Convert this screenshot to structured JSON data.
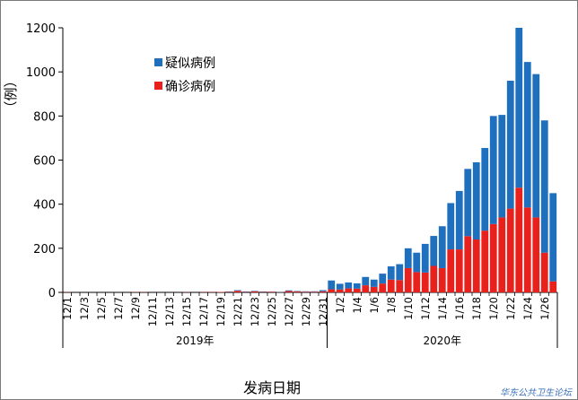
{
  "chart_data": {
    "type": "bar",
    "stacked": true,
    "ylabel": "（例）",
    "xlabel": "发病日期",
    "ylim": [
      0,
      1200
    ],
    "yticks": [
      0,
      200,
      400,
      600,
      800,
      1000,
      1200
    ],
    "grid": false,
    "legend_position": "upper-left",
    "colors": {
      "suspected": "#1f6fbf",
      "confirmed": "#e8211c"
    },
    "dates": [
      "12/1",
      "12/2",
      "12/3",
      "12/4",
      "12/5",
      "12/6",
      "12/7",
      "12/8",
      "12/9",
      "12/10",
      "12/11",
      "12/12",
      "12/13",
      "12/14",
      "12/15",
      "12/16",
      "12/17",
      "12/18",
      "12/19",
      "12/20",
      "12/21",
      "12/22",
      "12/23",
      "12/24",
      "12/25",
      "12/26",
      "12/27",
      "12/28",
      "12/29",
      "12/30",
      "12/31",
      "1/1",
      "1/2",
      "1/3",
      "1/4",
      "1/5",
      "1/6",
      "1/7",
      "1/8",
      "1/9",
      "1/10",
      "1/11",
      "1/12",
      "1/13",
      "1/14",
      "1/15",
      "1/16",
      "1/17",
      "1/18",
      "1/19",
      "1/20",
      "1/21",
      "1/22",
      "1/23",
      "1/24",
      "1/25",
      "1/26",
      "1/27"
    ],
    "tick_labels": [
      "12/1",
      "12/3",
      "12/5",
      "12/7",
      "12/9",
      "12/11",
      "12/13",
      "12/15",
      "12/17",
      "12/19",
      "12/21",
      "12/23",
      "12/25",
      "12/27",
      "12/29",
      "12/31",
      "1/2",
      "1/4",
      "1/6",
      "1/8",
      "1/10",
      "1/12",
      "1/14",
      "1/16",
      "1/18",
      "1/20",
      "1/22",
      "1/24",
      "1/26"
    ],
    "groups": [
      {
        "label": "2019年",
        "start": "12/1",
        "end": "12/31"
      },
      {
        "label": "2020年",
        "start": "1/1",
        "end": "1/27"
      }
    ],
    "series": [
      {
        "name": "确诊病例",
        "key": "confirmed",
        "values": [
          1,
          0,
          0,
          0,
          0,
          0,
          0,
          0,
          1,
          1,
          0,
          0,
          0,
          0,
          1,
          0,
          1,
          1,
          2,
          2,
          7,
          2,
          5,
          2,
          3,
          1,
          6,
          4,
          3,
          3,
          5,
          14,
          13,
          18,
          17,
          32,
          25,
          40,
          58,
          56,
          110,
          92,
          90,
          120,
          110,
          195,
          195,
          255,
          240,
          280,
          310,
          340,
          380,
          475,
          385,
          340,
          180,
          50
        ]
      },
      {
        "name": "疑似病例",
        "key": "suspected",
        "values": [
          0,
          0,
          0,
          0,
          0,
          0,
          0,
          0,
          0,
          0,
          0,
          0,
          0,
          0,
          0,
          0,
          0,
          0,
          0,
          2,
          3,
          2,
          2,
          2,
          1,
          1,
          3,
          2,
          2,
          2,
          5,
          40,
          26,
          27,
          24,
          38,
          33,
          45,
          60,
          72,
          90,
          88,
          130,
          136,
          190,
          210,
          265,
          305,
          350,
          375,
          490,
          465,
          580,
          725,
          660,
          650,
          600,
          400
        ]
      }
    ]
  },
  "watermark": "华东公共卫生论坛"
}
